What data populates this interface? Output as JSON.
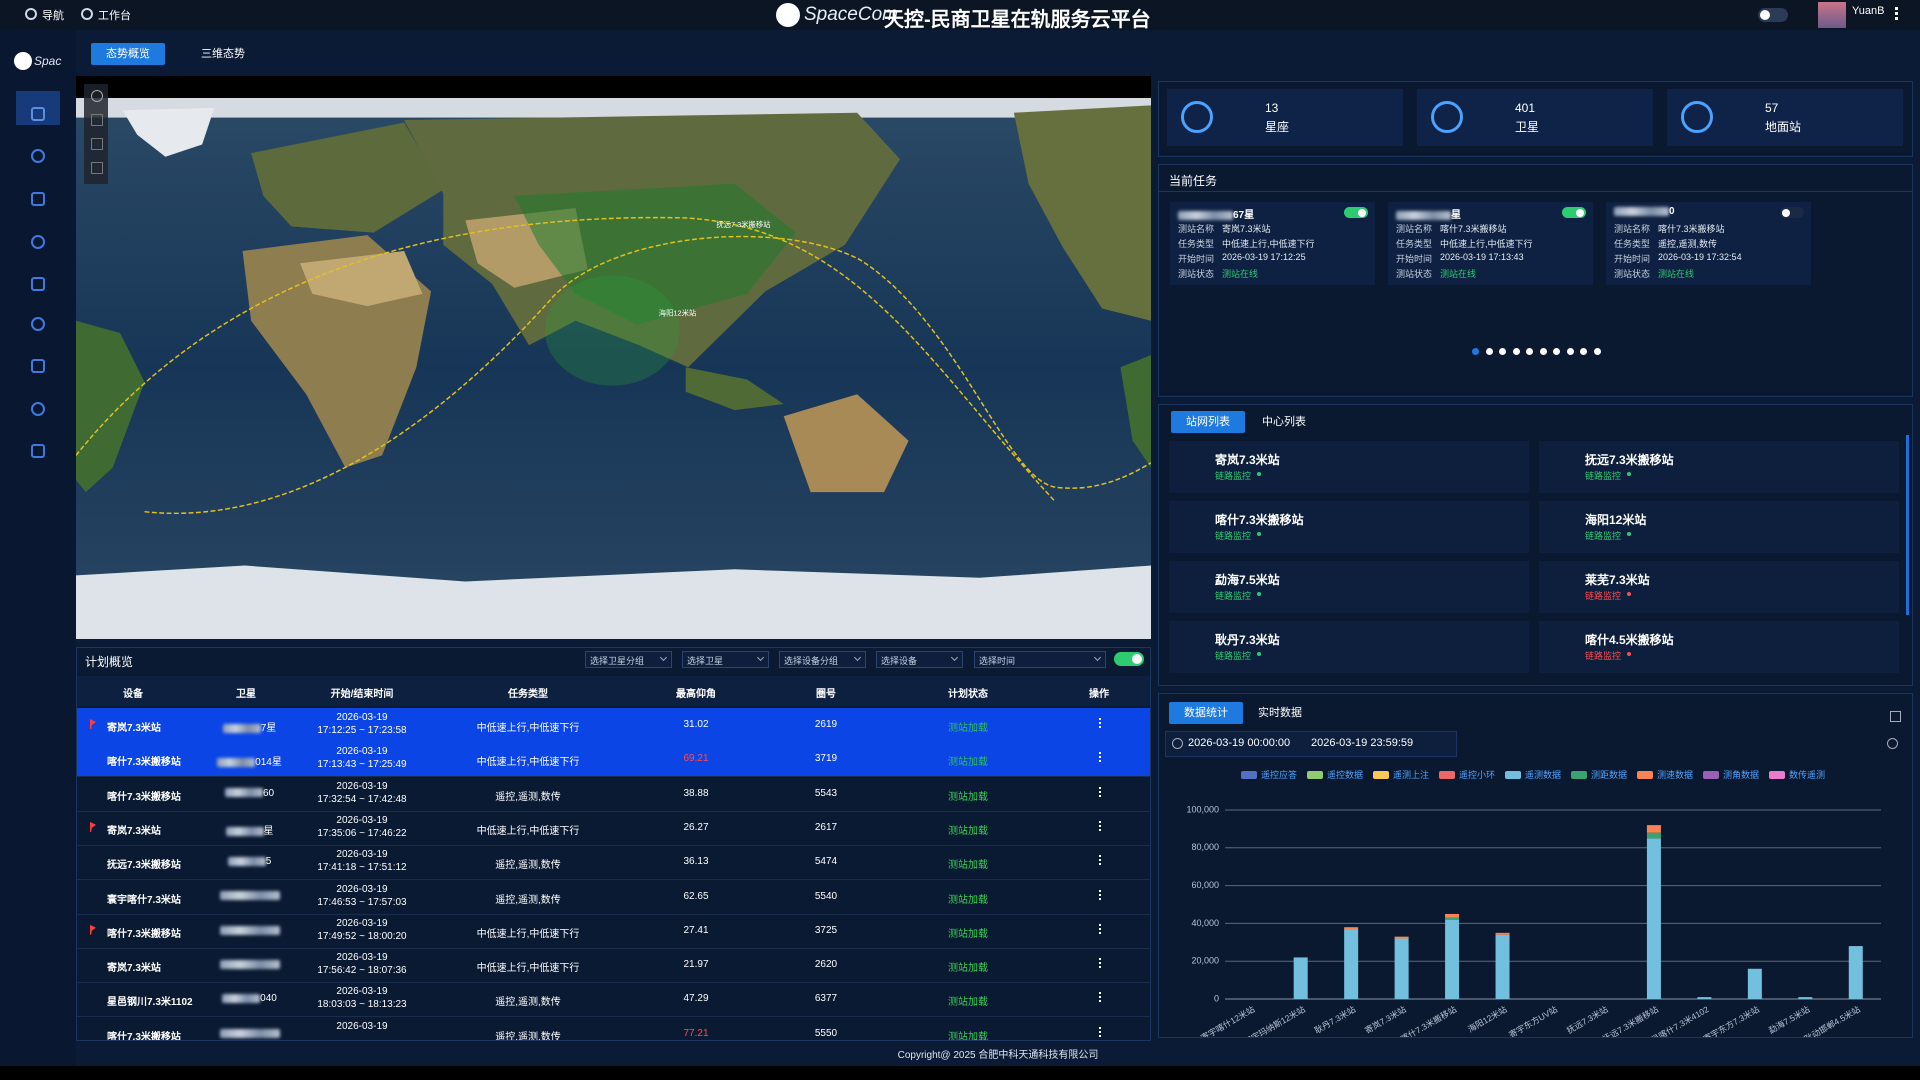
{
  "header": {
    "nav": "导航",
    "workbench": "工作台",
    "brand": "SpaceCom",
    "title": "天控-民商卫星在轨服务云平台",
    "user": "YuanB",
    "logo_text": "Spac"
  },
  "tabs": [
    "态势概览",
    "三维态势"
  ],
  "map": {
    "labels": [
      "抚远7.3米搬移站",
      "海阳12米站"
    ]
  },
  "stats": [
    {
      "value": 13,
      "label": "星座"
    },
    {
      "value": 401,
      "label": "卫星"
    },
    {
      "value": 57,
      "label": "地面站"
    }
  ],
  "current_tasks": {
    "title": "当前任务",
    "field_labels": [
      "测站名称",
      "任务类型",
      "开始时间",
      "测站状态"
    ],
    "cards": [
      {
        "name": "67星",
        "enabled": true,
        "fields": [
          "寄岚7.3米站",
          "中低速上行,中低速下行",
          "2026-03-19 17:12:25",
          "测站在线"
        ]
      },
      {
        "name": "星",
        "enabled": true,
        "fields": [
          "喀什7.3米搬移站",
          "中低速上行,中低速下行",
          "2026-03-19 17:13:43",
          "测站在线"
        ]
      },
      {
        "name": "0",
        "enabled": false,
        "fields": [
          "喀什7.3米搬移站",
          "遥控,遥测,数传",
          "2026-03-19 17:32:54",
          "测站在线"
        ]
      }
    ]
  },
  "stations": {
    "tabs": [
      "站网列表",
      "中心列表"
    ],
    "items": [
      {
        "name": "寄岚7.3米站",
        "status": "链路监控",
        "status_color": "#2ecc71"
      },
      {
        "name": "抚远7.3米搬移站",
        "status": "链路监控",
        "status_color": "#2ecc71"
      },
      {
        "name": "喀什7.3米搬移站",
        "status": "链路监控",
        "status_color": "#2ecc71"
      },
      {
        "name": "海阳12米站",
        "status": "链路监控",
        "status_color": "#2ecc71"
      },
      {
        "name": "勐海7.5米站",
        "status": "链路监控",
        "status_color": "#2ecc71"
      },
      {
        "name": "莱芜7.3米站",
        "status": "链路监控",
        "status_color": "#ff4d4f"
      },
      {
        "name": "耿丹7.3米站",
        "status": "链路监控",
        "status_color": "#2ecc71"
      },
      {
        "name": "喀什4.5米搬移站",
        "status": "链路监控",
        "status_color": "#ff4d4f"
      }
    ]
  },
  "plan": {
    "title": "计划概览",
    "filters": [
      "选择卫星分组",
      "选择卫星",
      "选择设备分组",
      "选择设备",
      "选择时间"
    ],
    "columns": [
      "设备",
      "卫星",
      "开始/结束时间",
      "任务类型",
      "最高仰角",
      "圈号",
      "计划状态",
      "操作"
    ],
    "rows": [
      {
        "device": "寄岚7.3米站",
        "satellite": "7星",
        "date": "2026-03-19",
        "time": "17:12:25 ~ 17:23:58",
        "task": "中低速上行,中低速下行",
        "elevation": 31.02,
        "orbit": 2619,
        "status": "测站加载",
        "highlight": true,
        "flag": true
      },
      {
        "device": "喀什7.3米搬移站",
        "satellite": "014星",
        "date": "2026-03-19",
        "time": "17:13:43 ~ 17:25:49",
        "task": "中低速上行,中低速下行",
        "elevation": 69.21,
        "elevation_color": "#ff4d4f",
        "orbit": 3719,
        "status": "测站加载",
        "highlight": true
      },
      {
        "device": "喀什7.3米搬移站",
        "satellite": "60",
        "date": "2026-03-19",
        "time": "17:32:54 ~ 17:42:48",
        "task": "遥控,遥测,数传",
        "elevation": 38.88,
        "orbit": 5543,
        "status": "测站加载"
      },
      {
        "device": "寄岚7.3米站",
        "satellite": "星",
        "date": "2026-03-19",
        "time": "17:35:06 ~ 17:46:22",
        "task": "中低速上行,中低速下行",
        "elevation": 26.27,
        "orbit": 2617,
        "status": "测站加载",
        "flag": true
      },
      {
        "device": "抚远7.3米搬移站",
        "satellite": "5",
        "date": "2026-03-19",
        "time": "17:41:18 ~ 17:51:12",
        "task": "遥控,遥测,数传",
        "elevation": 36.13,
        "orbit": 5474,
        "status": "测站加载"
      },
      {
        "device": "寰宇喀什7.3米站",
        "date": "2026-03-19",
        "time": "17:46:53 ~ 17:57:03",
        "task": "遥控,遥测,数传",
        "elevation": 62.65,
        "orbit": 5540,
        "status": "测站加载"
      },
      {
        "device": "喀什7.3米搬移站",
        "date": "2026-03-19",
        "time": "17:49:52 ~ 18:00:20",
        "task": "中低速上行,中低速下行",
        "elevation": 27.41,
        "orbit": 3725,
        "status": "测站加载",
        "flag": true
      },
      {
        "device": "寄岚7.3米站",
        "date": "2026-03-19",
        "time": "17:56:42 ~ 18:07:36",
        "task": "中低速上行,中低速下行",
        "elevation": 21.97,
        "orbit": 2620,
        "status": "测站加载"
      },
      {
        "device": "星邑钢川7.3米1102",
        "satellite": "040",
        "date": "2026-03-19",
        "time": "18:03:03 ~ 18:13:23",
        "task": "遥控,遥测,数传",
        "elevation": 47.29,
        "orbit": 6377,
        "status": "测站加载"
      },
      {
        "device": "喀什7.3米搬移站",
        "date": "2026-03-19",
        "task": "遥控,遥测,数传",
        "elevation": 77.21,
        "elevation_color": "#ff4d4f",
        "orbit": 5550,
        "status": "测站加载"
      }
    ]
  },
  "data_stats": {
    "tabs": [
      "数据统计",
      "实时数据"
    ],
    "start": "2026-03-19 00:00:00",
    "end": "2026-03-19 23:59:59"
  },
  "chart_data": {
    "type": "stacked-bar",
    "categories": [
      "寄宇喀什12米站",
      "寄宇玛纳斯12米站",
      "耿丹7.3米站",
      "寄岚7.3米站",
      "喀什7.3米搬移站",
      "海阳12米站",
      "寄宇东方UV站",
      "抚远7.3米站",
      "抚远7.3米搬移站",
      "星邑喀什7.3米4102",
      "寄宇东方7.3米站",
      "勐海7.5米站",
      "耿动邯郸4.5米站"
    ],
    "series": [
      {
        "name": "遥控应答",
        "color": "#5470c6",
        "values": [
          0,
          0,
          0,
          0,
          0,
          0,
          0,
          0,
          0,
          0,
          0,
          0,
          0
        ]
      },
      {
        "name": "遥控数据",
        "color": "#91cc75",
        "values": [
          0,
          0,
          0,
          0,
          0,
          0,
          0,
          0,
          0,
          0,
          0,
          0,
          0
        ]
      },
      {
        "name": "遥测上注",
        "color": "#fac858",
        "values": [
          0,
          0,
          0,
          0,
          0,
          0,
          0,
          0,
          0,
          0,
          0,
          0,
          0
        ]
      },
      {
        "name": "遥控小环",
        "color": "#ee6666",
        "values": [
          0,
          0,
          0,
          0,
          0,
          0,
          0,
          0,
          0,
          0,
          0,
          0,
          0
        ]
      },
      {
        "name": "遥测数据",
        "color": "#73c0de",
        "values": [
          0,
          22000,
          37000,
          32000,
          42000,
          34000,
          0,
          0,
          85000,
          1000,
          16000,
          1000,
          28000
        ]
      },
      {
        "name": "测距数据",
        "color": "#3ba272",
        "values": [
          0,
          0,
          0,
          0,
          1000,
          0,
          0,
          0,
          3000,
          0,
          0,
          0,
          0
        ]
      },
      {
        "name": "测速数据",
        "color": "#fc8452",
        "values": [
          0,
          0,
          1000,
          1000,
          2000,
          1000,
          0,
          0,
          4000,
          0,
          0,
          0,
          0
        ]
      },
      {
        "name": "测角数据",
        "color": "#9a60b4",
        "values": [
          0,
          0,
          0,
          0,
          0,
          0,
          0,
          0,
          0,
          0,
          0,
          0,
          0
        ]
      },
      {
        "name": "数传遥测",
        "color": "#ea7ccc",
        "values": [
          0,
          0,
          0,
          0,
          0,
          0,
          0,
          0,
          0,
          0,
          0,
          0,
          0
        ]
      }
    ],
    "ylim": [
      0,
      100000
    ],
    "yticks": [
      0,
      {
        "value": 20000,
        "label": "20,000"
      },
      {
        "value": 40000,
        "label": "40,000"
      },
      {
        "value": 60000,
        "label": "60,000"
      },
      {
        "value": 80000,
        "label": "80,000"
      },
      {
        "value": 100000,
        "label": "100,000"
      }
    ],
    "grid": true
  },
  "footer": "Copyright@ 2025 合肥中科天通科技有限公司"
}
